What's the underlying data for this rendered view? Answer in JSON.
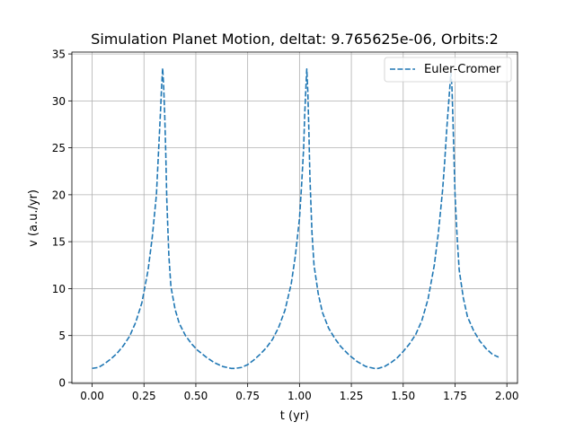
{
  "chart_data": {
    "type": "line",
    "title": "Simulation Planet Motion, deltat: 9.765625e-06, Orbits:2",
    "xlabel": "t (yr)",
    "ylabel": "v (a.u./yr)",
    "xlim": [
      -0.0977,
      2.0512
    ],
    "ylim": [
      -0.1,
      35.2
    ],
    "xticks": [
      "0.00",
      "0.25",
      "0.50",
      "0.75",
      "1.00",
      "1.25",
      "1.50",
      "1.75",
      "2.00"
    ],
    "yticks": [
      "0",
      "5",
      "10",
      "15",
      "20",
      "25",
      "30",
      "35"
    ],
    "grid": true,
    "legend_position": "top-right",
    "series": [
      {
        "name": "Euler-Cromer",
        "line_style": "dashed",
        "color": "#1f77b4",
        "x": [
          0.0,
          0.03,
          0.06,
          0.09,
          0.12,
          0.15,
          0.18,
          0.21,
          0.24,
          0.27,
          0.29,
          0.31,
          0.32,
          0.33,
          0.335,
          0.34,
          0.345,
          0.35,
          0.355,
          0.36,
          0.37,
          0.38,
          0.4,
          0.42,
          0.45,
          0.48,
          0.51,
          0.55,
          0.59,
          0.63,
          0.67,
          0.69,
          0.72,
          0.75,
          0.78,
          0.81,
          0.84,
          0.87,
          0.9,
          0.93,
          0.96,
          0.98,
          1.0,
          1.01,
          1.02,
          1.025,
          1.03,
          1.035,
          1.04,
          1.045,
          1.05,
          1.06,
          1.07,
          1.09,
          1.11,
          1.14,
          1.17,
          1.2,
          1.24,
          1.28,
          1.32,
          1.36,
          1.38,
          1.41,
          1.44,
          1.47,
          1.5,
          1.53,
          1.56,
          1.59,
          1.62,
          1.65,
          1.67,
          1.69,
          1.7,
          1.71,
          1.72,
          1.725,
          1.73,
          1.735,
          1.74,
          1.745,
          1.75,
          1.76,
          1.77,
          1.79,
          1.81,
          1.84,
          1.87,
          1.9,
          1.93,
          1.96
        ],
        "y": [
          1.5,
          1.6,
          2.0,
          2.5,
          3.1,
          3.9,
          4.9,
          6.4,
          8.5,
          12.0,
          15.5,
          20.0,
          24.5,
          29.0,
          31.5,
          33.5,
          31.5,
          28.5,
          24.5,
          19.5,
          13.5,
          10.2,
          7.8,
          6.3,
          5.0,
          4.1,
          3.4,
          2.7,
          2.1,
          1.7,
          1.5,
          1.5,
          1.6,
          1.9,
          2.4,
          3.0,
          3.7,
          4.6,
          5.9,
          7.7,
          10.5,
          13.5,
          17.5,
          21.0,
          25.0,
          28.5,
          31.0,
          33.4,
          31.0,
          27.0,
          22.0,
          16.0,
          12.5,
          9.5,
          7.5,
          5.8,
          4.7,
          3.8,
          2.9,
          2.2,
          1.7,
          1.5,
          1.5,
          1.7,
          2.1,
          2.6,
          3.3,
          4.1,
          5.1,
          6.6,
          8.9,
          12.5,
          16.0,
          20.5,
          23.5,
          27.0,
          30.0,
          31.5,
          33.0,
          31.5,
          28.0,
          24.0,
          20.0,
          15.5,
          12.0,
          9.0,
          7.0,
          5.5,
          4.4,
          3.6,
          3.0,
          2.7
        ]
      }
    ]
  }
}
